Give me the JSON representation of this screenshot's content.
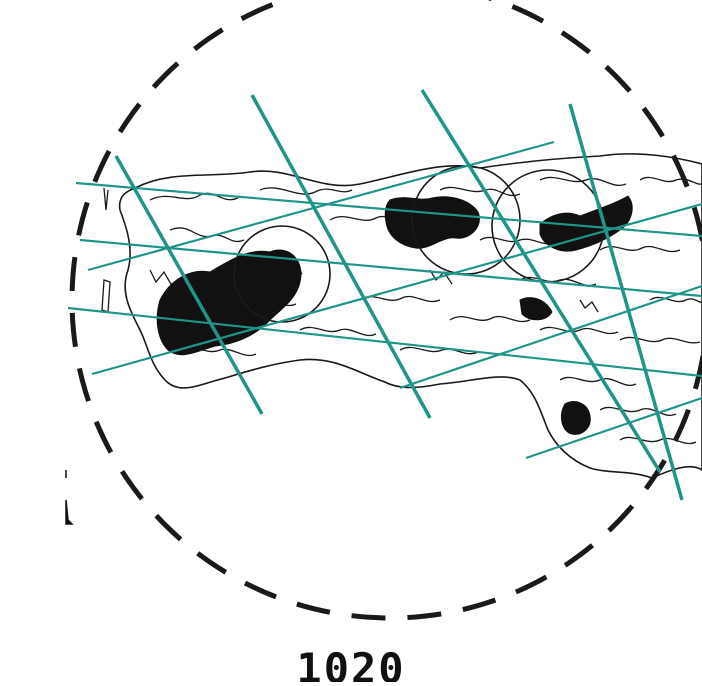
{
  "figure": {
    "year_label": "1020",
    "colors": {
      "outline": "#1a1a1a",
      "boundary": "#1a1a1a",
      "transect": "#1f9488",
      "patch": "#111111",
      "background": "#ffffff"
    },
    "layers": [
      "dashed-boundary-circle",
      "habitat-outline",
      "dense-cover-patches",
      "sampling-circles",
      "transect-lines"
    ]
  }
}
